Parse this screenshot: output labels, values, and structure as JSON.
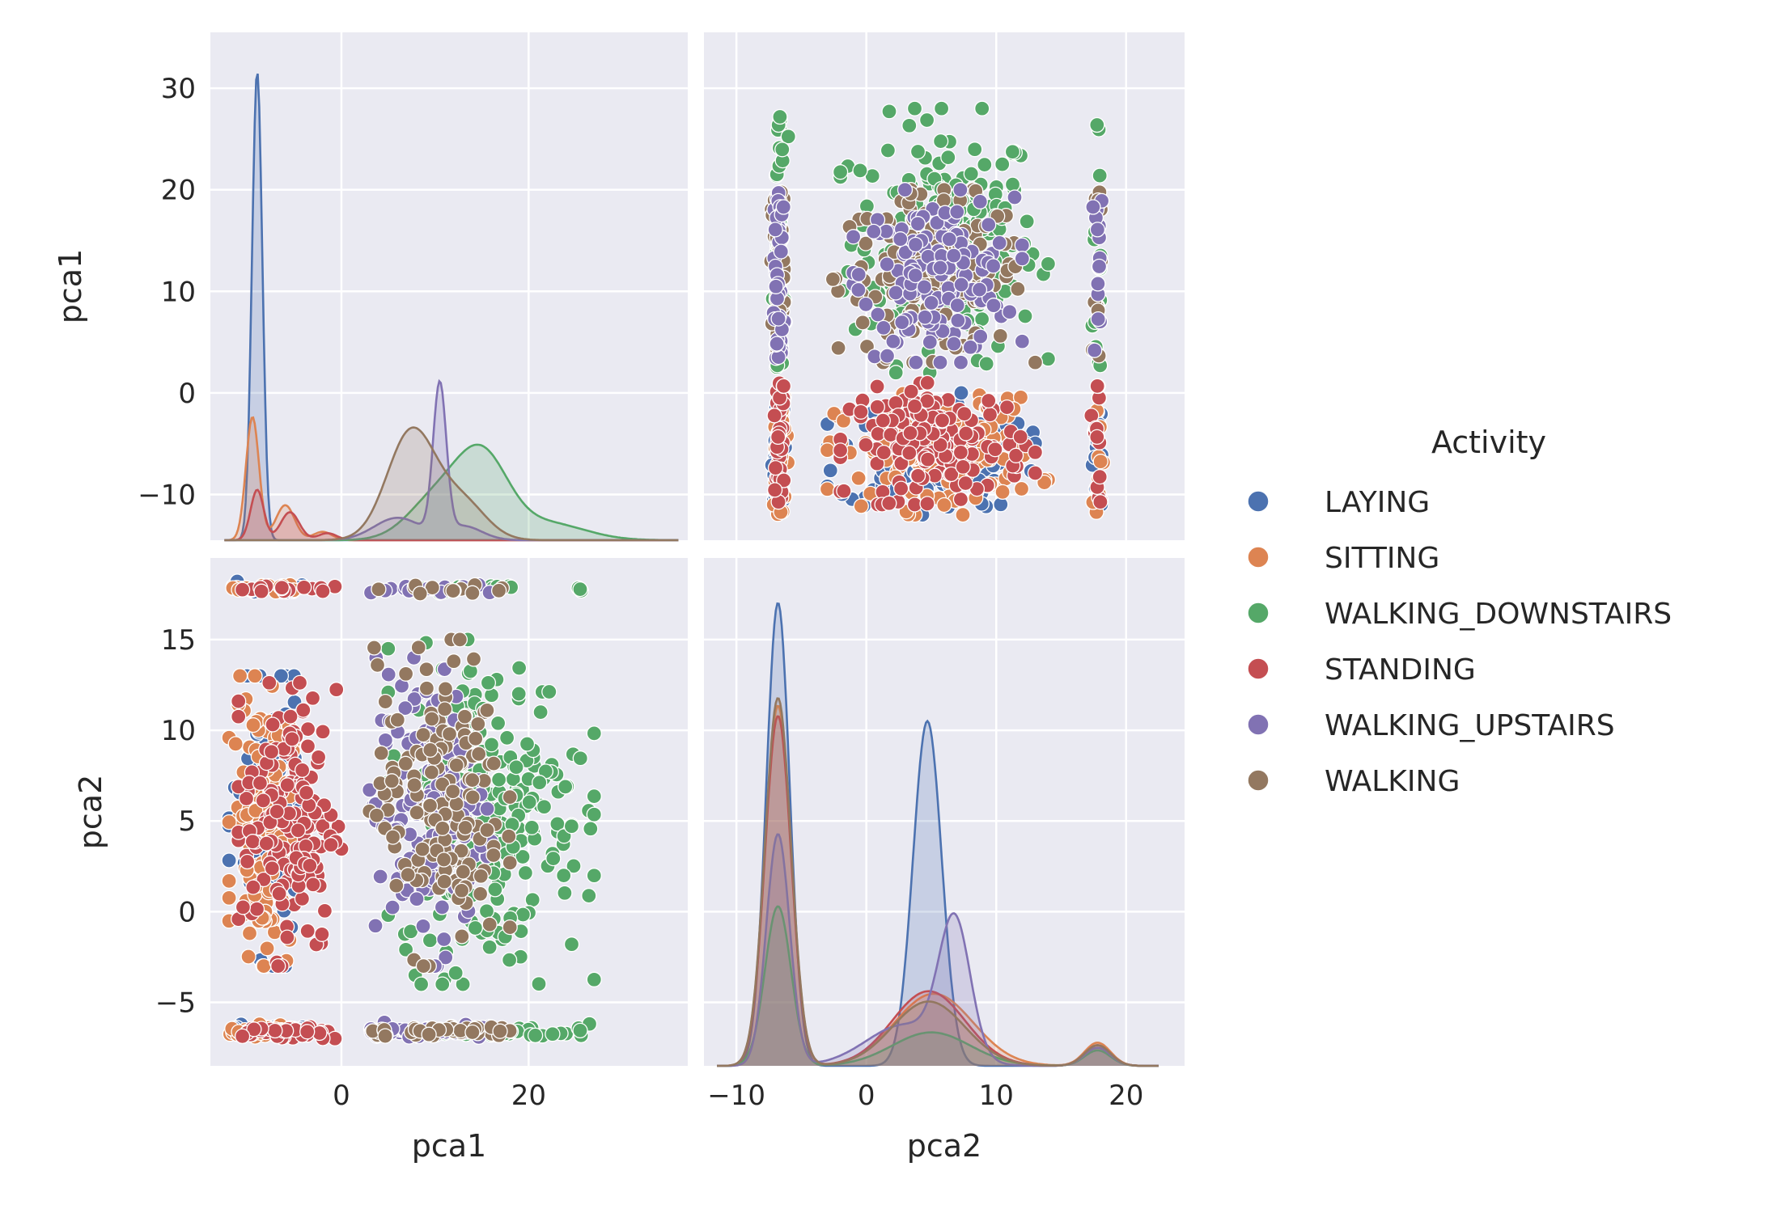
{
  "chart_data": {
    "type": "pairplot",
    "variables": [
      "pca1",
      "pca2"
    ],
    "hue_title": "Activity",
    "grid": true,
    "legend_placement": "right",
    "classes": [
      {
        "name": "LAYING",
        "color": "#4c72b0"
      },
      {
        "name": "SITTING",
        "color": "#dd8452"
      },
      {
        "name": "WALKING_DOWNSTAIRS",
        "color": "#55a868"
      },
      {
        "name": "STANDING",
        "color": "#c44e52"
      },
      {
        "name": "WALKING_UPSTAIRS",
        "color": "#8172b3"
      },
      {
        "name": "WALKING",
        "color": "#937860"
      }
    ],
    "axes": {
      "pca1": {
        "range": [
          -14,
          37
        ],
        "ticks": [
          0,
          20
        ],
        "tick_labels": [
          "0",
          "20"
        ]
      },
      "pca1_y": {
        "range": [
          -14.5,
          35.5
        ],
        "ticks": [
          -10,
          0,
          10,
          20,
          30
        ],
        "tick_labels": [
          "−10",
          "0",
          "10",
          "20",
          "30"
        ]
      },
      "pca2": {
        "range": [
          -12.5,
          24.5
        ],
        "ticks": [
          -10,
          0,
          10,
          20
        ],
        "tick_labels": [
          "−10",
          "0",
          "10",
          "20"
        ]
      },
      "pca2_y": {
        "range": [
          -8.5,
          19.5
        ],
        "ticks": [
          -5,
          0,
          5,
          10,
          15
        ],
        "tick_labels": [
          "−5",
          "0",
          "5",
          "10",
          "15"
        ]
      }
    },
    "panels": [
      {
        "row": 0,
        "col": 0,
        "kind": "kde",
        "variable": "pca1",
        "density_max": 34,
        "kde": [
          {
            "name": "LAYING",
            "peaks": [
              [
                -9,
                33.5,
                0.55
              ]
            ]
          },
          {
            "name": "SITTING",
            "peaks": [
              [
                -9.5,
                8.8,
                0.7
              ],
              [
                -6,
                2.5,
                1.0
              ],
              [
                -2,
                0.6,
                1.0
              ]
            ]
          },
          {
            "name": "STANDING",
            "peaks": [
              [
                -9,
                3.6,
                0.7
              ],
              [
                -5.5,
                2.0,
                1.0
              ],
              [
                -1.5,
                0.5,
                1.0
              ]
            ]
          },
          {
            "name": "WALKING_DOWNSTAIRS",
            "peaks": [
              [
                10,
                2.8,
                3.0
              ],
              [
                15,
                5.8,
                2.8
              ],
              [
                22,
                1.2,
                4.0
              ]
            ]
          },
          {
            "name": "WALKING_UPSTAIRS",
            "peaks": [
              [
                10.5,
                10.6,
                0.7
              ],
              [
                6,
                1.6,
                2.5
              ],
              [
                13,
                1.0,
                2.0
              ]
            ]
          },
          {
            "name": "WALKING",
            "peaks": [
              [
                7.5,
                7.8,
                2.6
              ],
              [
                13,
                2.6,
                2.5
              ]
            ]
          }
        ]
      },
      {
        "row": 0,
        "col": 1,
        "kind": "scatter",
        "x": "pca2",
        "y": "pca1",
        "clusters": [
          {
            "name": "WALKING_DOWNSTAIRS",
            "x_range": [
              -2,
              14
            ],
            "y_range": [
              2,
              28
            ],
            "n": 210
          },
          {
            "name": "WALKING",
            "x_range": [
              -3,
              13
            ],
            "y_range": [
              3,
              20
            ],
            "n": 170
          },
          {
            "name": "WALKING_UPSTAIRS",
            "x_range": [
              -1,
              12
            ],
            "y_range": [
              3,
              20
            ],
            "n": 150
          },
          {
            "name": "LAYING",
            "x_range": [
              -3,
              13
            ],
            "y_range": [
              -12,
              0
            ],
            "n": 150
          },
          {
            "name": "SITTING",
            "x_range": [
              -3,
              14
            ],
            "y_range": [
              -12,
              0
            ],
            "n": 150
          },
          {
            "name": "STANDING",
            "x_range": [
              -2,
              13
            ],
            "y_range": [
              -11,
              1
            ],
            "n": 150
          }
        ]
      },
      {
        "row": 1,
        "col": 0,
        "kind": "scatter",
        "x": "pca1",
        "y": "pca2",
        "clusters": [
          {
            "name": "LAYING",
            "x_range": [
              -12,
              -4
            ],
            "y_range": [
              -3,
              13
            ],
            "n": 130
          },
          {
            "name": "SITTING",
            "x_range": [
              -12,
              -5
            ],
            "y_range": [
              -3,
              13
            ],
            "n": 150
          },
          {
            "name": "STANDING",
            "x_range": [
              -11,
              0
            ],
            "y_range": [
              -3,
              13
            ],
            "n": 170
          },
          {
            "name": "WALKING_DOWNSTAIRS",
            "x_range": [
              5,
              27
            ],
            "y_range": [
              -4,
              15
            ],
            "n": 230
          },
          {
            "name": "WALKING_UPSTAIRS",
            "x_range": [
              3,
              16
            ],
            "y_range": [
              -3,
              14
            ],
            "n": 150
          },
          {
            "name": "WALKING",
            "x_range": [
              3,
              18
            ],
            "y_range": [
              -3,
              15
            ],
            "n": 160
          }
        ]
      },
      {
        "row": 1,
        "col": 1,
        "kind": "kde",
        "variable": "pca2",
        "density_max": 18.5,
        "kde": [
          {
            "name": "LAYING",
            "peaks": [
              [
                -6.8,
                18,
                0.9
              ],
              [
                4.7,
                13.4,
                1.1
              ],
              [
                17.8,
                0.8,
                1.0
              ]
            ]
          },
          {
            "name": "SITTING",
            "peaks": [
              [
                -6.8,
                14,
                1.0
              ],
              [
                5.2,
                2.8,
                3.0
              ],
              [
                17.8,
                0.9,
                1.0
              ]
            ]
          },
          {
            "name": "STANDING",
            "peaks": [
              [
                -6.8,
                13.6,
                1.0
              ],
              [
                4.8,
                2.9,
                2.8
              ],
              [
                17.8,
                0.8,
                1.0
              ]
            ]
          },
          {
            "name": "WALKING_DOWNSTAIRS",
            "peaks": [
              [
                -6.8,
                6.2,
                1.0
              ],
              [
                5,
                1.3,
                3.0
              ],
              [
                17.8,
                0.6,
                1.0
              ]
            ]
          },
          {
            "name": "WALKING_UPSTAIRS",
            "peaks": [
              [
                -6.8,
                9.0,
                0.9
              ],
              [
                6.8,
                5.2,
                1.2
              ],
              [
                3,
                1.6,
                3.0
              ],
              [
                17.8,
                0.7,
                1.0
              ]
            ]
          },
          {
            "name": "WALKING",
            "peaks": [
              [
                -6.8,
                14.3,
                1.0
              ],
              [
                4.8,
                2.5,
                2.8
              ],
              [
                17.8,
                0.8,
                1.0
              ]
            ]
          }
        ]
      }
    ]
  }
}
